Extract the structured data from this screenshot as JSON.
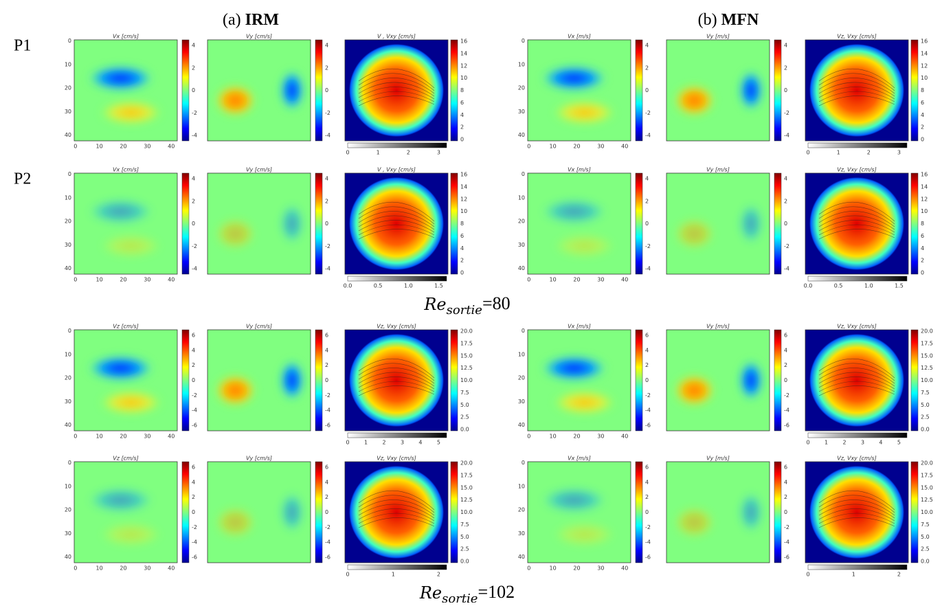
{
  "headers": [
    {
      "label": "(a)",
      "name": "IRM"
    },
    {
      "label": "(b)",
      "name": "MFN"
    }
  ],
  "row_labels": [
    "P1",
    "P2"
  ],
  "axis_ticks": [
    "0",
    "10",
    "20",
    "30",
    "40"
  ],
  "groups": [
    {
      "caption": {
        "symbol": "Re",
        "subscript": "sortie",
        "value": "=80"
      },
      "titles": [
        [
          "Vx [cm/s]",
          "Vy [cm/s]",
          "V , Vxy [cm/s]"
        ],
        [
          "Vx [m/s]",
          "Vy [m/s]",
          "Vz, Vxy [cm/s]"
        ]
      ],
      "component_ticks": [
        "4",
        "2",
        "0",
        "-2",
        "-4"
      ],
      "magnitude_ticks": [
        "16",
        "14",
        "12",
        "10",
        "8",
        "6",
        "4",
        "2",
        "0"
      ],
      "rows": [
        {
          "speed_ticks": [
            "0",
            "1",
            "2",
            "3"
          ]
        },
        {
          "speed_ticks": [
            "0.0",
            "0.5",
            "1.0",
            "1.5"
          ]
        }
      ]
    },
    {
      "caption": {
        "symbol": "Re",
        "subscript": "sortie",
        "value": "=102"
      },
      "titles": [
        [
          "Vz [cm/s]",
          "Vy [cm/s]",
          "Vz, Vxy [cm/s]"
        ],
        [
          "Vx [m/s]",
          "Vy [m/s]",
          "Vz, Vxy [cm/s]"
        ]
      ],
      "component_ticks": [
        "6",
        "4",
        "2",
        "0",
        "-2",
        "-4",
        "-6"
      ],
      "magnitude_ticks": [
        "20.0",
        "17.5",
        "15.0",
        "12.5",
        "10.0",
        "7.5",
        "5.0",
        "2.5",
        "0.0"
      ],
      "rows": [
        {
          "speed_ticks": [
            "0",
            "1",
            "2",
            "3",
            "4",
            "5"
          ]
        },
        {
          "speed_ticks": [
            "0",
            "1",
            "2"
          ]
        }
      ]
    }
  ]
}
